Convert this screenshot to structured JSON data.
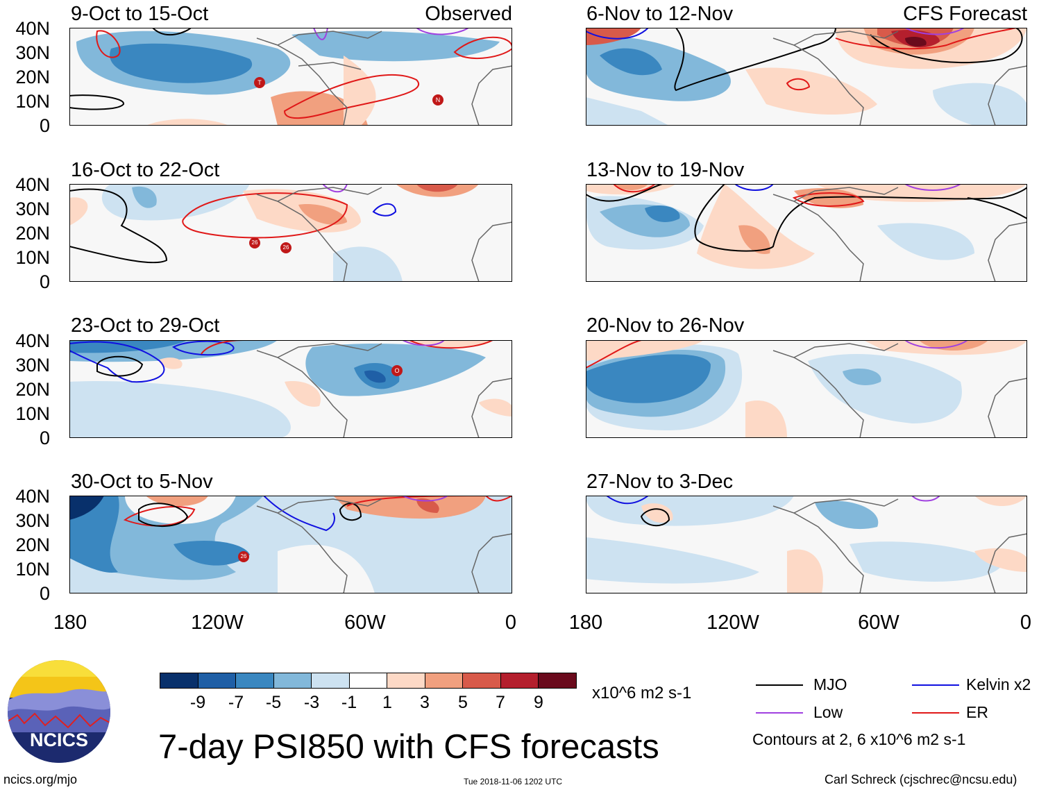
{
  "observed_tag": "Observed",
  "forecast_tag": "CFS Forecast",
  "panels": [
    {
      "title": "9-Oct to 15-Oct"
    },
    {
      "title": "16-Oct to 22-Oct"
    },
    {
      "title": "23-Oct to 29-Oct"
    },
    {
      "title": "30-Oct to 5-Nov"
    },
    {
      "title": "6-Nov to 12-Nov"
    },
    {
      "title": "13-Nov to 19-Nov"
    },
    {
      "title": "20-Nov to 26-Nov"
    },
    {
      "title": "27-Nov to 3-Dec"
    }
  ],
  "lat_labels": [
    "40N",
    "30N",
    "20N",
    "10N",
    "0"
  ],
  "lon_labels": [
    "180",
    "120W",
    "60W",
    "0"
  ],
  "storm_markers": [
    "T",
    "N",
    "26",
    "26",
    "O",
    "26"
  ],
  "colorbar": {
    "ticks": [
      "-9",
      "-7",
      "-5",
      "-3",
      "-1",
      "1",
      "3",
      "5",
      "7",
      "9"
    ],
    "units": "x10^6 m2 s-1",
    "colors": [
      "#08306b",
      "#1f5fa6",
      "#3a87c0",
      "#82b8da",
      "#cde2f1",
      "#ffffff",
      "#fdd9c6",
      "#f1a07f",
      "#d85a4a",
      "#b41f2d",
      "#6a0a1c"
    ]
  },
  "legend": {
    "mjo": "MJO",
    "kelvin": "Kelvin x2",
    "low": "Low",
    "er": "ER",
    "contours_note": "Contours at 2, 6 x10^6 m2 s-1",
    "colors": {
      "mjo": "#000000",
      "kelvin": "#1010e0",
      "low": "#a040e0",
      "er": "#e01818"
    }
  },
  "logo": {
    "text": "NCICS",
    "url": "ncics.org/mjo"
  },
  "main_title": "7-day PSI850 with CFS forecasts",
  "timestamp": "Tue 2018-11-06 1202 UTC",
  "credit": "Carl Schreck (cjschrec@ncsu.edu)"
}
